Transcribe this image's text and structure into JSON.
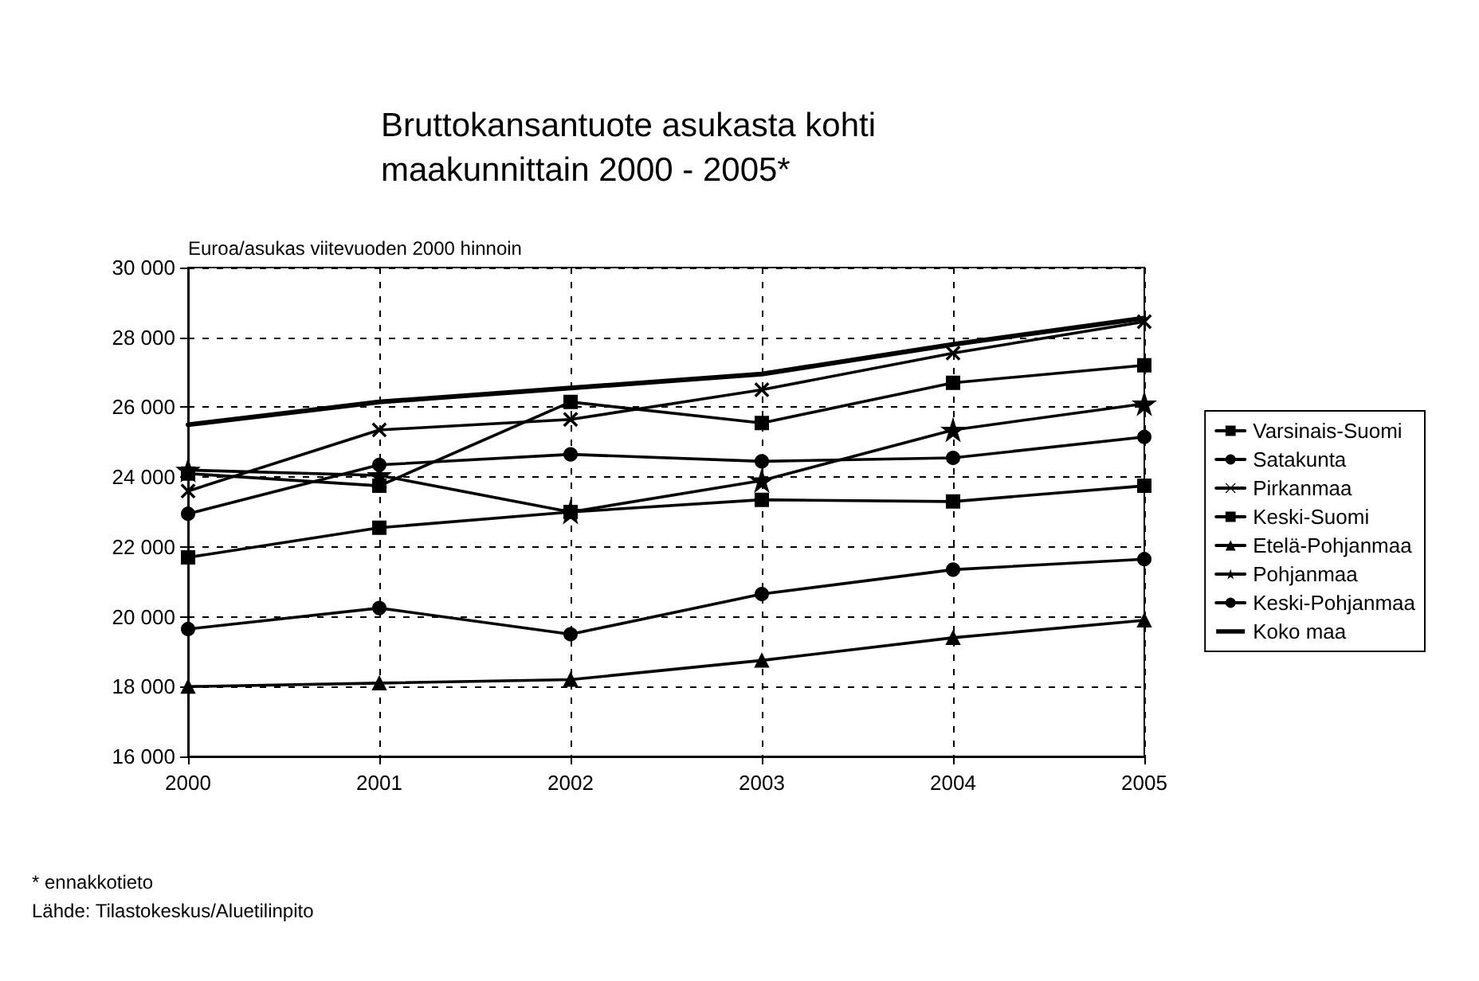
{
  "chart_data": {
    "type": "line",
    "title": "Bruttokansantuote asukasta kohti\nmaakunnittain 2000 - 2005*",
    "ylabel": "Euroa/asukas viitevuoden 2000 hinnoin",
    "categories": [
      "2000",
      "2001",
      "2002",
      "2003",
      "2004",
      "2005"
    ],
    "ylim": [
      16000,
      30000
    ],
    "yticks": [
      {
        "value": 16000,
        "label": "16 000"
      },
      {
        "value": 18000,
        "label": "18 000"
      },
      {
        "value": 20000,
        "label": "20 000"
      },
      {
        "value": 22000,
        "label": "22 000"
      },
      {
        "value": 24000,
        "label": "24 000"
      },
      {
        "value": 26000,
        "label": "26 000"
      },
      {
        "value": 28000,
        "label": "28 000"
      },
      {
        "value": 30000,
        "label": "30 000"
      }
    ],
    "grid": true,
    "legend": "right",
    "line_style": "solid",
    "series": [
      {
        "name": "Varsinais-Suomi",
        "color": "#000000",
        "marker": "square",
        "values": [
          24100,
          23750,
          26150,
          25550,
          26700,
          27200
        ]
      },
      {
        "name": "Satakunta",
        "color": "#000000",
        "marker": "circle",
        "values": [
          22950,
          24350,
          24650,
          24450,
          24550,
          25150
        ]
      },
      {
        "name": "Pirkanmaa",
        "color": "#000000",
        "marker": "cross",
        "values": [
          23600,
          25350,
          25650,
          26500,
          27550,
          28450
        ]
      },
      {
        "name": "Keski-Suomi",
        "color": "#000000",
        "marker": "square",
        "values": [
          21700,
          22550,
          23000,
          23350,
          23300,
          23750
        ]
      },
      {
        "name": "Etelä-Pohjanmaa",
        "color": "#000000",
        "marker": "triangle",
        "values": [
          18000,
          18100,
          18200,
          18750,
          19400,
          19900
        ]
      },
      {
        "name": "Pohjanmaa",
        "color": "#000000",
        "marker": "star",
        "values": [
          24200,
          24050,
          23000,
          23900,
          25350,
          26100
        ]
      },
      {
        "name": "Keski-Pohjanmaa",
        "color": "#000000",
        "marker": "circle",
        "values": [
          19650,
          20250,
          19500,
          20650,
          21350,
          21650
        ]
      },
      {
        "name": "Koko maa",
        "color": "#000000",
        "marker": "none",
        "values": [
          25500,
          26150,
          26550,
          26950,
          27800,
          28550
        ]
      }
    ],
    "annotations": [
      "* ennakkotieto",
      "Lähde: Tilastokeskus/Aluetilinpito"
    ]
  }
}
